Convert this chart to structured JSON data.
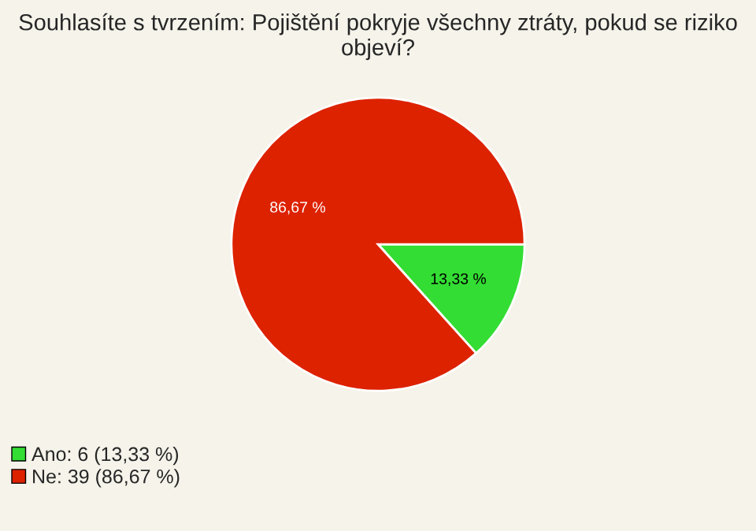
{
  "chart_data": {
    "type": "pie",
    "title": "Souhlasíte s tvrzením: Pojištění pokryje všechny ztráty, pokud se riziko objeví?",
    "categories": [
      "Ano: 6 (13,33 %)",
      "Ne: 39 (86,67 %)"
    ],
    "values": [
      13.33,
      86.67
    ],
    "value_labels": [
      "13,33 %",
      "86,67 %"
    ],
    "colors": [
      "#33dd33",
      "#dd2200"
    ],
    "legend": "bottom left"
  }
}
